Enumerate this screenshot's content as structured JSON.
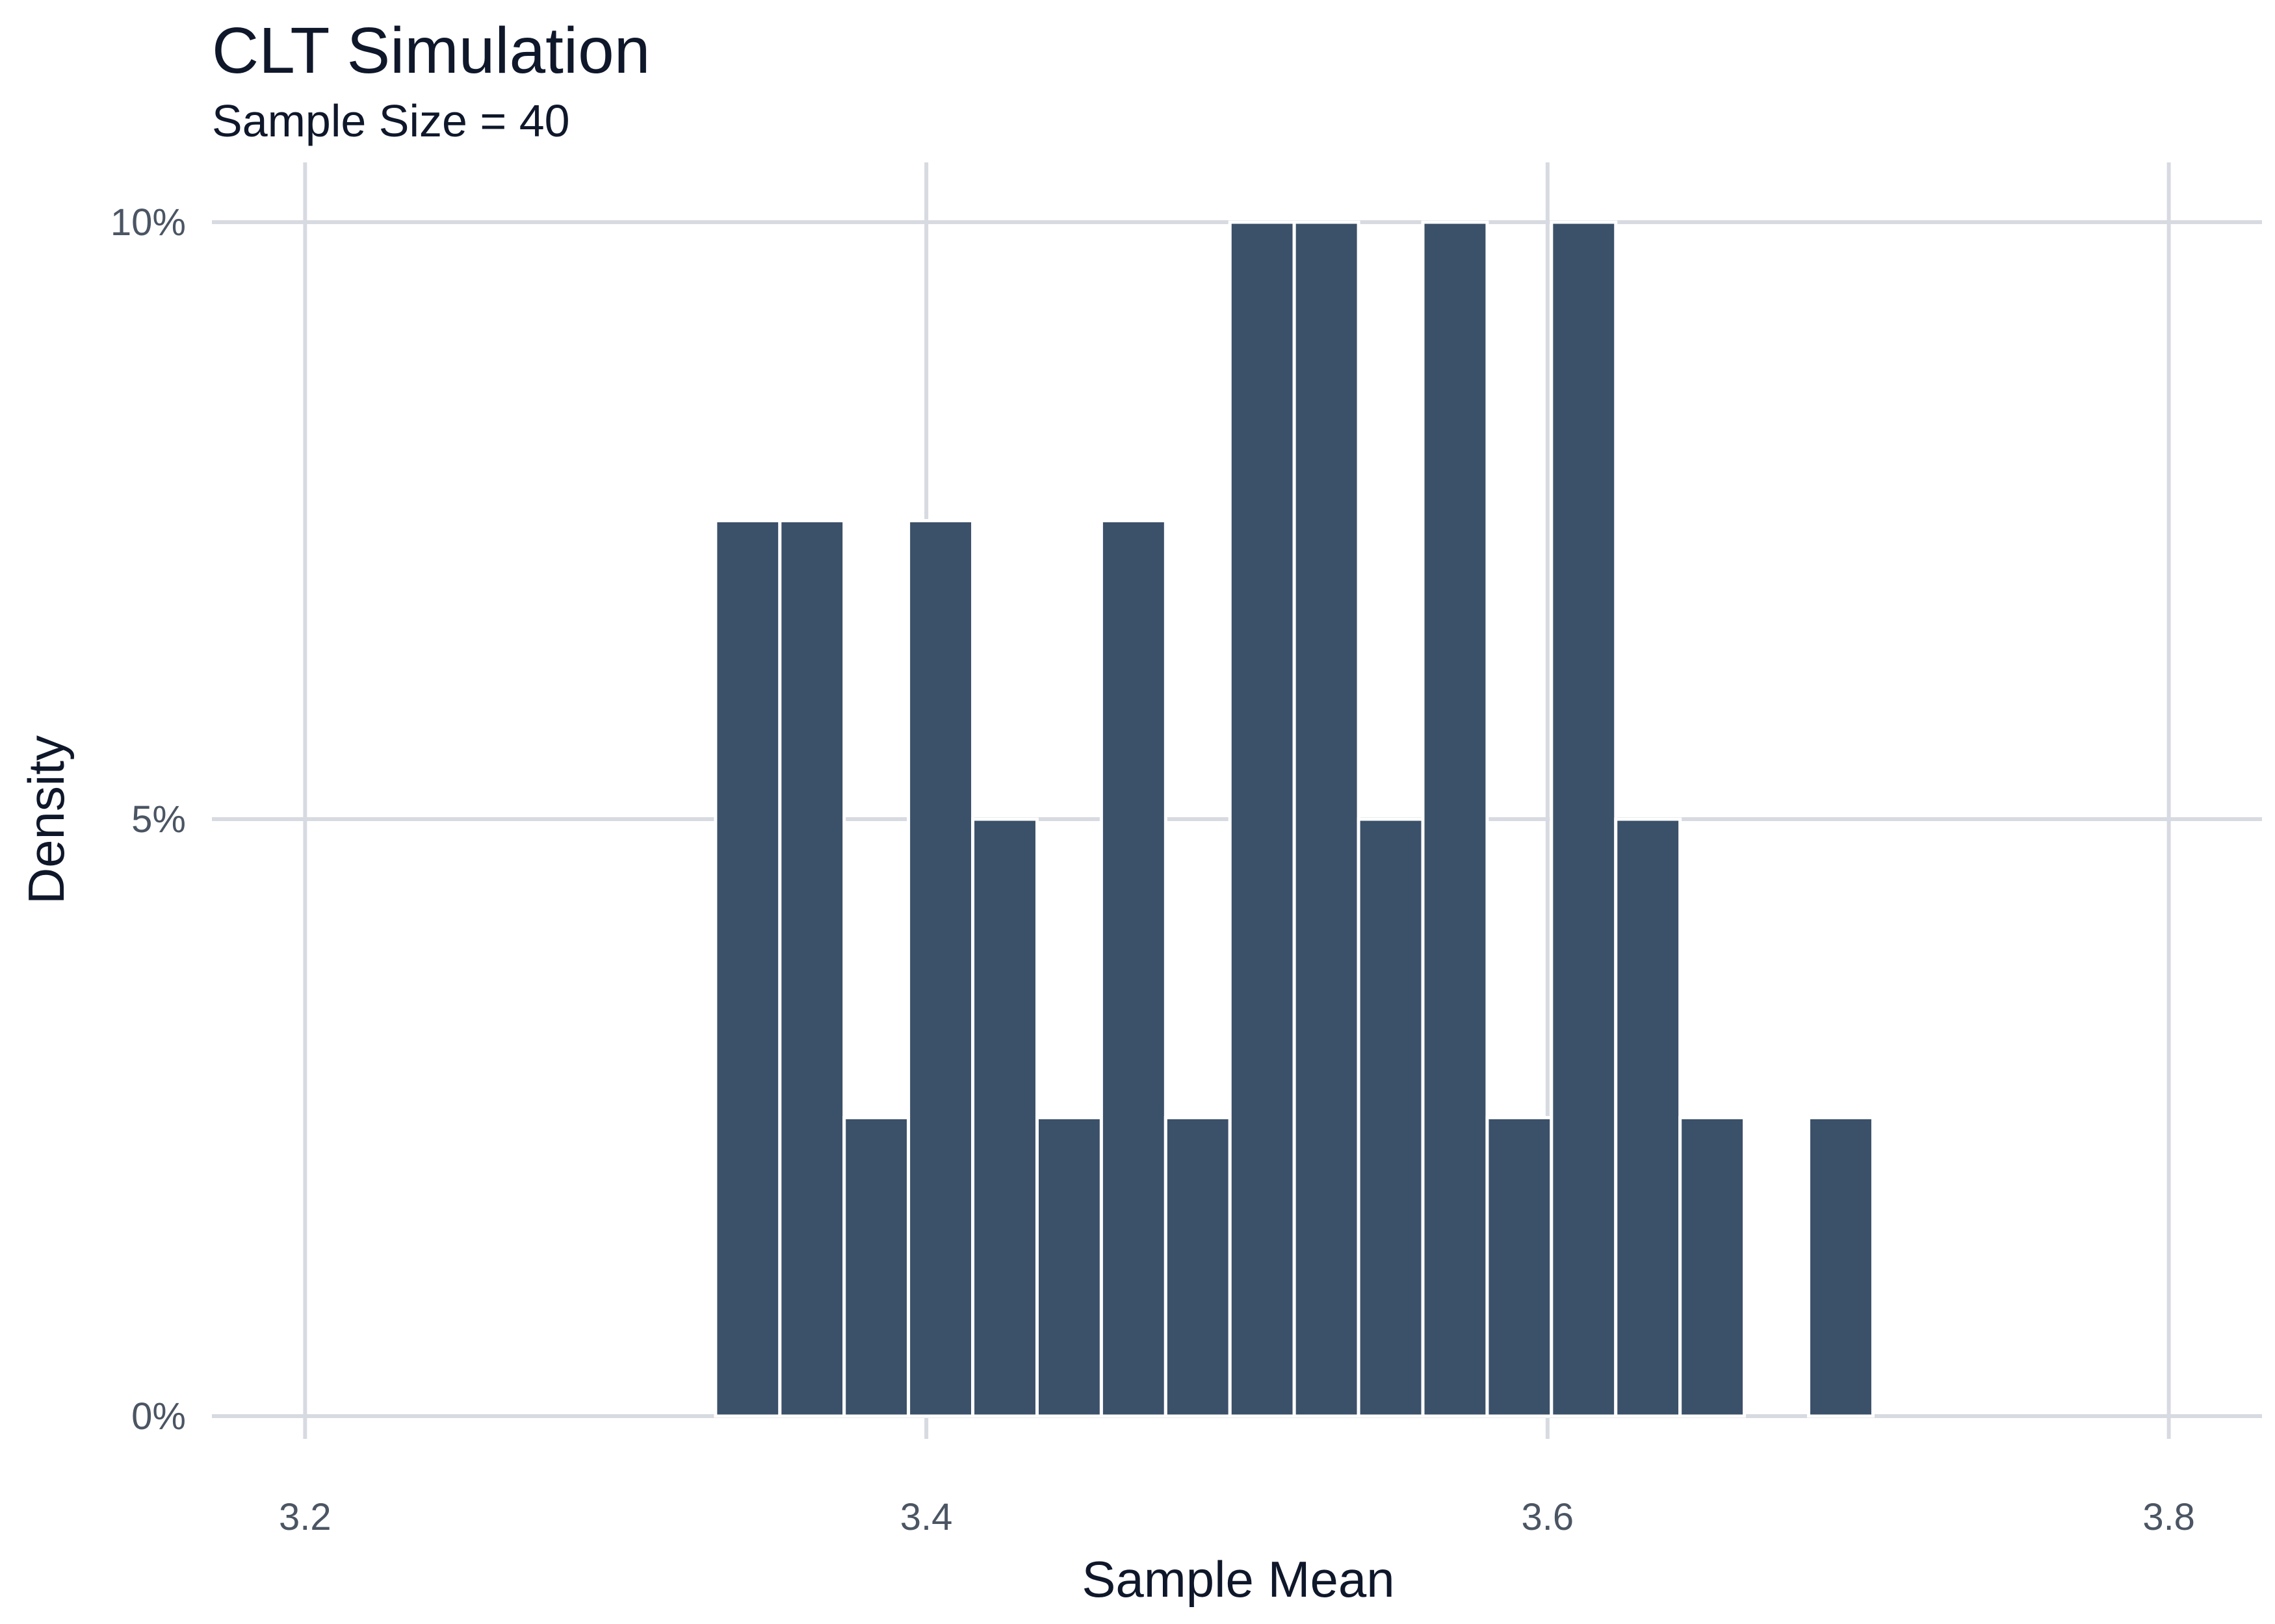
{
  "chart_data": {
    "type": "bar",
    "title": "CLT Simulation",
    "subtitle": "Sample Size = 40",
    "xlabel": "Sample Mean",
    "ylabel": "Density",
    "x_ticks": [
      "3.2",
      "3.4",
      "3.6",
      "3.8"
    ],
    "x_tick_values": [
      3.2,
      3.4,
      3.6,
      3.8
    ],
    "y_ticks": [
      "0%",
      "5%",
      "10%"
    ],
    "y_tick_values": [
      0,
      0.05,
      0.1
    ],
    "xlim": [
      3.17,
      3.83
    ],
    "ylim": [
      0,
      0.1
    ],
    "bin_width": 0.0207,
    "bins": [
      {
        "x": 3.3425,
        "density": 0.075
      },
      {
        "x": 3.3632,
        "density": 0.075
      },
      {
        "x": 3.3839,
        "density": 0.025
      },
      {
        "x": 3.4046,
        "density": 0.075
      },
      {
        "x": 3.4253,
        "density": 0.05
      },
      {
        "x": 3.446,
        "density": 0.025
      },
      {
        "x": 3.4667,
        "density": 0.075
      },
      {
        "x": 3.4874,
        "density": 0.025
      },
      {
        "x": 3.5081,
        "density": 0.1
      },
      {
        "x": 3.5288,
        "density": 0.1
      },
      {
        "x": 3.5495,
        "density": 0.05
      },
      {
        "x": 3.5702,
        "density": 0.1
      },
      {
        "x": 3.5909,
        "density": 0.025
      },
      {
        "x": 3.6116,
        "density": 0.1
      },
      {
        "x": 3.6323,
        "density": 0.05
      },
      {
        "x": 3.653,
        "density": 0.025
      },
      {
        "x": 3.6737,
        "density": 0
      },
      {
        "x": 3.6944,
        "density": 0.025
      }
    ],
    "bar_color": "#3b5069",
    "grid": true,
    "legend": "none"
  }
}
